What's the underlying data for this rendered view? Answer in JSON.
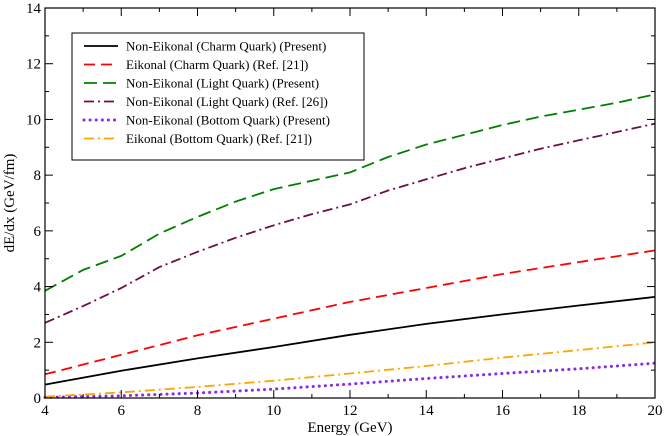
{
  "chart_data": {
    "type": "line",
    "title": "",
    "xlabel": "Energy (GeV)",
    "ylabel": "dE/dx (GeV/fm)",
    "xlim": [
      4,
      20
    ],
    "ylim": [
      0,
      14
    ],
    "xticks": [
      4,
      6,
      8,
      10,
      12,
      14,
      16,
      18,
      20
    ],
    "yticks": [
      0,
      2,
      4,
      6,
      8,
      10,
      12,
      14
    ],
    "grid": false,
    "legend_position": "top-left",
    "series": [
      {
        "name": "Non-Eikonal (Charm Quark) (Present)",
        "color": "#000000",
        "dash": "solid",
        "x": [
          4,
          6,
          8,
          10,
          12,
          14,
          16,
          18,
          20
        ],
        "y": [
          0.48,
          0.98,
          1.42,
          1.83,
          2.27,
          2.66,
          3.0,
          3.32,
          3.63
        ]
      },
      {
        "name": "Eikonal (Charm Quark) (Ref. [21])",
        "color": "#ff0000",
        "dash": "dashed",
        "x": [
          4,
          6,
          8,
          10,
          12,
          14,
          16,
          18,
          20
        ],
        "y": [
          0.85,
          1.55,
          2.25,
          2.85,
          3.45,
          3.95,
          4.45,
          4.88,
          5.3
        ]
      },
      {
        "name": "Non-Eikonal (Light Quark) (Present)",
        "color": "#008000",
        "dash": "long-dashed",
        "x": [
          4,
          5,
          6,
          7,
          8,
          9,
          10,
          11,
          12,
          13,
          14,
          15,
          16,
          17,
          18,
          19,
          20
        ],
        "y": [
          3.85,
          4.6,
          5.1,
          5.9,
          6.5,
          7.05,
          7.5,
          7.8,
          8.1,
          8.65,
          9.1,
          9.45,
          9.8,
          10.1,
          10.35,
          10.6,
          10.9
        ]
      },
      {
        "name": "Non-Eikonal (Light Quark) (Ref. [26])",
        "color": "#6b0f4a",
        "dash": "dash-dot",
        "x": [
          4,
          5,
          6,
          7,
          8,
          9,
          10,
          11,
          12,
          13,
          14,
          15,
          16,
          17,
          18,
          19,
          20
        ],
        "y": [
          2.7,
          3.3,
          3.95,
          4.7,
          5.25,
          5.75,
          6.2,
          6.6,
          6.95,
          7.45,
          7.85,
          8.25,
          8.6,
          8.95,
          9.25,
          9.55,
          9.85
        ]
      },
      {
        "name": "Non-Eikonal (Bottom Quark) (Present)",
        "color": "#8a2be2",
        "dash": "dotted",
        "x": [
          4,
          6,
          8,
          10,
          12,
          14,
          16,
          18,
          20
        ],
        "y": [
          0.02,
          0.08,
          0.18,
          0.32,
          0.5,
          0.7,
          0.88,
          1.05,
          1.25
        ]
      },
      {
        "name": "Eikonal (Bottom Quark) (Ref. [21])",
        "color": "#ffa500",
        "dash": "dash-dot",
        "x": [
          4,
          6,
          8,
          10,
          12,
          14,
          16,
          18,
          20
        ],
        "y": [
          0.05,
          0.2,
          0.4,
          0.62,
          0.88,
          1.15,
          1.45,
          1.72,
          2.0
        ]
      }
    ]
  }
}
